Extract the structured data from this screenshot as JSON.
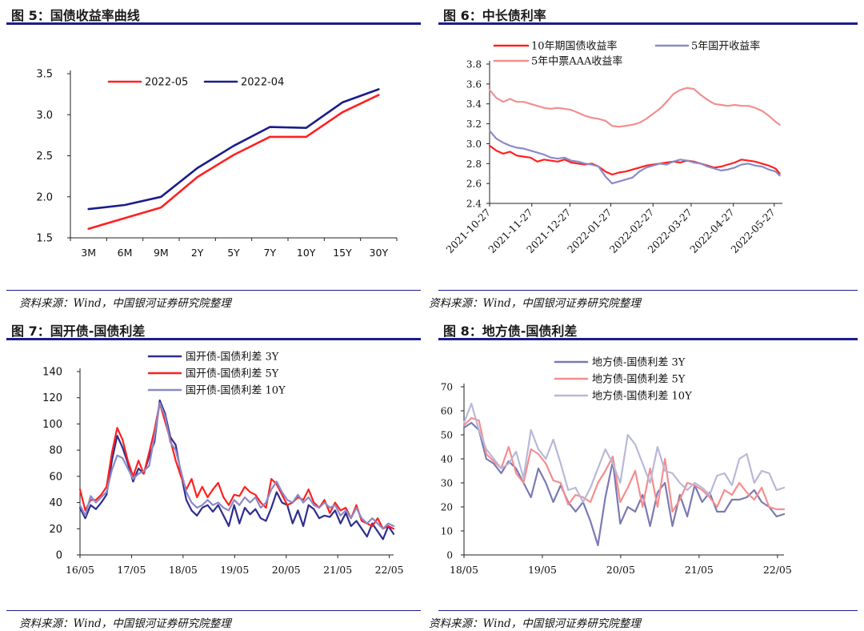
{
  "sources": {
    "c5": "资料来源：Wind，中国银河证券研究院整理",
    "c6": "资料来源：Wind，中国银河证券研究院整理",
    "c7": "资料来源：Wind，中国银河证券研究院整理",
    "c8": "资料来源：Wind，中国银河证券研究院整理"
  },
  "chart_data": [
    {
      "id": "c5",
      "type": "line",
      "title": "图 5：国债收益率曲线",
      "categories": [
        "3M",
        "6M",
        "9M",
        "2Y",
        "5Y",
        "7Y",
        "10Y",
        "15Y",
        "30Y"
      ],
      "series": [
        {
          "name": "2022-05",
          "color": "#ff2020",
          "values": [
            1.61,
            1.74,
            1.87,
            2.24,
            2.51,
            2.73,
            2.73,
            3.03,
            3.24
          ]
        },
        {
          "name": "2022-04",
          "color": "#1c1c8c",
          "values": [
            1.85,
            1.9,
            2.0,
            2.35,
            2.62,
            2.85,
            2.84,
            3.15,
            3.31
          ]
        }
      ],
      "yticks": [
        1.5,
        2.0,
        2.5,
        3.0,
        3.5
      ],
      "ytick_labels": [
        "1.5",
        "2.0",
        "2.5",
        "3.0",
        "3.5"
      ],
      "ylim": [
        1.5,
        3.5
      ],
      "legend": "top-left"
    },
    {
      "id": "c6",
      "type": "line",
      "title": "图 6：中长债利率",
      "xrange": [
        0,
        215
      ],
      "xticks": [
        0,
        31,
        59,
        89,
        120,
        148,
        179,
        209
      ],
      "xtick_labels": [
        "2021-10-27",
        "2021-11-27",
        "2021-12-27",
        "2022-01-27",
        "2022-02-27",
        "2022-03-27",
        "2022-04-27",
        "2022-05-27"
      ],
      "yticks": [
        2.4,
        2.6,
        2.8,
        3.0,
        3.2,
        3.4,
        3.6,
        3.8
      ],
      "ytick_labels": [
        "2.4",
        "2.6",
        "2.8",
        "3.0",
        "3.2",
        "3.4",
        "3.6",
        "3.8"
      ],
      "ylim": [
        2.4,
        3.8
      ],
      "series": [
        {
          "name": "10年期国债收益率",
          "color": "#ff2020",
          "x": [
            0,
            5,
            10,
            15,
            20,
            25,
            30,
            35,
            40,
            45,
            50,
            55,
            60,
            65,
            70,
            75,
            80,
            85,
            90,
            95,
            100,
            105,
            110,
            115,
            120,
            125,
            130,
            135,
            140,
            145,
            150,
            155,
            160,
            165,
            170,
            175,
            180,
            185,
            190,
            195,
            200,
            205,
            210,
            213
          ],
          "values": [
            2.98,
            2.93,
            2.9,
            2.92,
            2.88,
            2.87,
            2.86,
            2.82,
            2.84,
            2.83,
            2.82,
            2.84,
            2.81,
            2.8,
            2.79,
            2.8,
            2.77,
            2.72,
            2.69,
            2.71,
            2.72,
            2.74,
            2.76,
            2.78,
            2.79,
            2.8,
            2.81,
            2.82,
            2.81,
            2.83,
            2.82,
            2.8,
            2.78,
            2.76,
            2.77,
            2.79,
            2.81,
            2.84,
            2.83,
            2.82,
            2.8,
            2.78,
            2.75,
            2.7
          ]
        },
        {
          "name": "5年国开收益率",
          "color": "#8a8ac8",
          "x": [
            0,
            5,
            10,
            15,
            20,
            25,
            30,
            35,
            40,
            45,
            50,
            55,
            60,
            65,
            70,
            75,
            80,
            85,
            90,
            95,
            100,
            105,
            110,
            115,
            120,
            125,
            130,
            135,
            140,
            145,
            150,
            155,
            160,
            165,
            170,
            175,
            180,
            185,
            190,
            195,
            200,
            205,
            210,
            213
          ],
          "values": [
            3.13,
            3.05,
            3.01,
            2.98,
            2.96,
            2.95,
            2.93,
            2.91,
            2.89,
            2.86,
            2.85,
            2.86,
            2.83,
            2.82,
            2.8,
            2.79,
            2.77,
            2.67,
            2.6,
            2.62,
            2.64,
            2.66,
            2.72,
            2.76,
            2.78,
            2.8,
            2.79,
            2.82,
            2.84,
            2.83,
            2.81,
            2.8,
            2.77,
            2.75,
            2.73,
            2.74,
            2.76,
            2.79,
            2.8,
            2.78,
            2.77,
            2.74,
            2.72,
            2.68
          ]
        },
        {
          "name": "5年中票AAA收益率",
          "color": "#f48e8e",
          "x": [
            0,
            5,
            10,
            15,
            20,
            25,
            30,
            35,
            40,
            45,
            50,
            55,
            60,
            65,
            70,
            75,
            80,
            85,
            90,
            95,
            100,
            105,
            110,
            115,
            120,
            125,
            130,
            135,
            140,
            145,
            150,
            155,
            160,
            165,
            170,
            175,
            180,
            185,
            190,
            195,
            200,
            205,
            210,
            213
          ],
          "values": [
            3.54,
            3.46,
            3.42,
            3.45,
            3.42,
            3.42,
            3.4,
            3.38,
            3.36,
            3.35,
            3.36,
            3.35,
            3.34,
            3.31,
            3.28,
            3.26,
            3.25,
            3.23,
            3.18,
            3.17,
            3.18,
            3.19,
            3.21,
            3.25,
            3.3,
            3.35,
            3.42,
            3.5,
            3.54,
            3.56,
            3.55,
            3.49,
            3.44,
            3.4,
            3.39,
            3.38,
            3.39,
            3.38,
            3.38,
            3.36,
            3.33,
            3.28,
            3.22,
            3.19
          ]
        }
      ],
      "legend": "top"
    },
    {
      "id": "c7",
      "type": "line",
      "title": "图 7：国开债-国债利差",
      "xrange": [
        0,
        73
      ],
      "xticks": [
        0,
        12,
        24,
        36,
        48,
        60,
        72
      ],
      "xtick_labels": [
        "16/05",
        "17/05",
        "18/05",
        "19/05",
        "20/05",
        "21/05",
        "22/05"
      ],
      "yticks": [
        0,
        20,
        40,
        60,
        80,
        100,
        120,
        140
      ],
      "ytick_labels": [
        "0",
        "20",
        "40",
        "60",
        "80",
        "100",
        "120",
        "140"
      ],
      "ylim": [
        0,
        140
      ],
      "series": [
        {
          "name": "国开债-国债利差  3Y",
          "color": "#2e2e8e",
          "values": [
            36,
            28,
            38,
            35,
            40,
            46,
            72,
            91,
            82,
            70,
            56,
            66,
            62,
            75,
            86,
            118,
            108,
            90,
            84,
            62,
            42,
            34,
            30,
            36,
            38,
            33,
            38,
            30,
            22,
            38,
            24,
            36,
            31,
            35,
            28,
            26,
            36,
            48,
            40,
            38,
            24,
            34,
            22,
            38,
            35,
            28,
            30,
            29,
            34,
            24,
            32,
            22,
            26,
            20,
            14,
            24,
            18,
            12,
            22,
            16
          ]
        },
        {
          "name": "国开债-国债利差  5Y",
          "color": "#ff2020",
          "values": [
            50,
            34,
            42,
            42,
            46,
            52,
            78,
            97,
            88,
            72,
            60,
            72,
            62,
            78,
            95,
            116,
            102,
            88,
            72,
            60,
            50,
            58,
            44,
            52,
            44,
            50,
            55,
            44,
            38,
            46,
            45,
            52,
            48,
            46,
            40,
            36,
            58,
            54,
            46,
            38,
            40,
            44,
            42,
            50,
            40,
            36,
            42,
            32,
            40,
            34,
            36,
            28,
            38,
            26,
            24,
            22,
            28,
            20,
            22,
            20
          ]
        },
        {
          "name": "国开债-国债利差  10Y",
          "color": "#8a8ac8",
          "values": [
            38,
            30,
            45,
            40,
            44,
            48,
            65,
            76,
            74,
            66,
            58,
            62,
            64,
            68,
            90,
            116,
            106,
            86,
            80,
            64,
            48,
            40,
            36,
            38,
            42,
            38,
            40,
            36,
            34,
            42,
            38,
            44,
            40,
            44,
            36,
            40,
            50,
            56,
            48,
            42,
            40,
            46,
            40,
            44,
            38,
            36,
            40,
            36,
            38,
            30,
            34,
            28,
            36,
            28,
            24,
            28,
            24,
            20,
            24,
            22
          ]
        }
      ],
      "legend": "top-center"
    },
    {
      "id": "c8",
      "type": "line",
      "title": "图 8：地方债-国债利差",
      "xrange": [
        0,
        49
      ],
      "xticks": [
        0,
        12,
        24,
        36,
        48
      ],
      "xtick_labels": [
        "18/05",
        "19/05",
        "20/05",
        "21/05",
        "22/05"
      ],
      "yticks": [
        0,
        10,
        20,
        30,
        40,
        50,
        60,
        70
      ],
      "ytick_labels": [
        "0",
        "10",
        "20",
        "30",
        "40",
        "50",
        "60",
        "70"
      ],
      "ylim": [
        0,
        70
      ],
      "series": [
        {
          "name": "地方债-国债利差  3Y",
          "color": "#7a7ab4",
          "values": [
            53,
            55,
            52,
            40,
            38,
            34,
            39,
            36,
            30,
            24,
            36,
            30,
            22,
            29,
            22,
            18,
            22,
            14,
            4,
            24,
            39,
            13,
            20,
            18,
            25,
            12,
            26,
            30,
            12,
            25,
            16,
            29,
            22,
            26,
            18,
            18,
            23,
            23,
            24,
            27,
            22,
            20,
            16,
            17
          ]
        },
        {
          "name": "地方债-国债利差  5Y",
          "color": "#f48e8e",
          "values": [
            54,
            57,
            56,
            42,
            39,
            36,
            45,
            34,
            30,
            44,
            42,
            38,
            31,
            30,
            21,
            25,
            24,
            22,
            30,
            35,
            41,
            22,
            28,
            35,
            20,
            36,
            20,
            40,
            18,
            23,
            30,
            29,
            27,
            24,
            20,
            27,
            25,
            30,
            26,
            23,
            28,
            20,
            19,
            19
          ]
        },
        {
          "name": "地方债-国债利差  10Y",
          "color": "#b8b8d8",
          "values": [
            55,
            63,
            52,
            44,
            40,
            36,
            38,
            43,
            32,
            52,
            44,
            40,
            48,
            38,
            27,
            28,
            22,
            28,
            36,
            44,
            38,
            30,
            50,
            46,
            38,
            30,
            45,
            35,
            34,
            30,
            27,
            30,
            28,
            25,
            33,
            34,
            29,
            40,
            42,
            30,
            35,
            34,
            27,
            28
          ]
        }
      ],
      "legend": "top-center"
    }
  ]
}
